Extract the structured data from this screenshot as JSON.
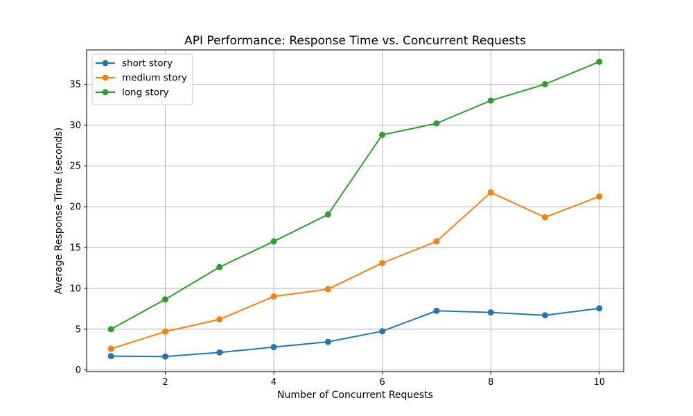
{
  "chart_data": {
    "type": "line",
    "title": "API Performance: Response Time vs. Concurrent Requests",
    "xlabel": "Number of Concurrent Requests",
    "ylabel": "Average Response Time (seconds)",
    "xlim": [
      0.55,
      10.45
    ],
    "ylim": [
      -0.2,
      39.2
    ],
    "xticks": [
      2,
      4,
      6,
      8,
      10
    ],
    "yticks": [
      0,
      5,
      10,
      15,
      20,
      25,
      30,
      35
    ],
    "grid": true,
    "legend_position": "upper-left",
    "x": [
      1,
      2,
      3,
      4,
      5,
      6,
      7,
      8,
      9,
      10
    ],
    "series": [
      {
        "name": "short story",
        "color": "#1f77b4",
        "values": [
          1.7,
          1.65,
          2.15,
          2.8,
          3.45,
          4.75,
          7.25,
          7.05,
          6.7,
          7.55
        ]
      },
      {
        "name": "medium story",
        "color": "#ff7f0e",
        "values": [
          2.6,
          4.7,
          6.2,
          9.0,
          9.9,
          13.1,
          15.75,
          21.75,
          18.7,
          21.25
        ]
      },
      {
        "name": "long story",
        "color": "#2ca02c",
        "values": [
          5.0,
          8.65,
          12.6,
          15.75,
          19.05,
          28.8,
          30.2,
          33.0,
          35.0,
          37.75
        ]
      }
    ]
  }
}
